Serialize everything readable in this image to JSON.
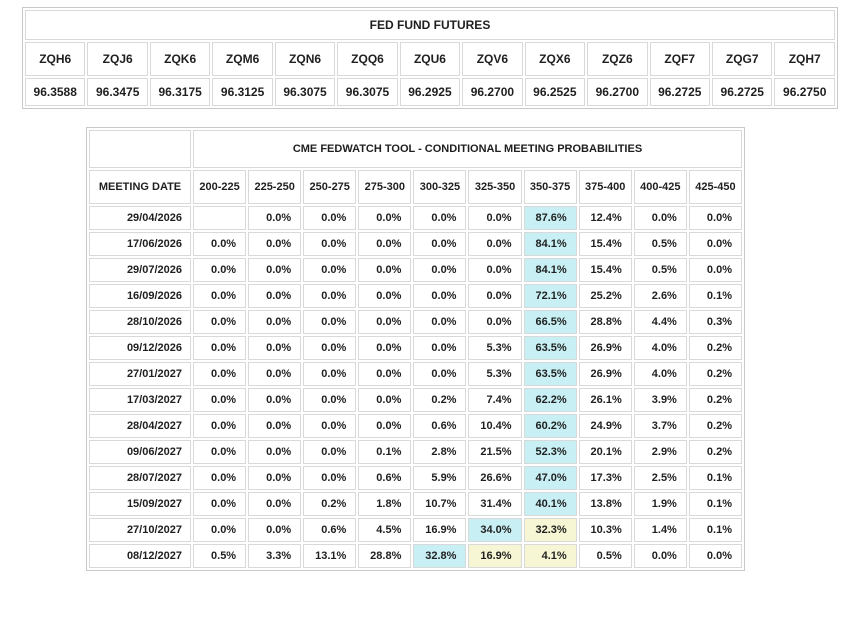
{
  "futures_table": {
    "title": "FED FUND FUTURES",
    "columns": [
      "ZQH6",
      "ZQJ6",
      "ZQK6",
      "ZQM6",
      "ZQN6",
      "ZQQ6",
      "ZQU6",
      "ZQV6",
      "ZQX6",
      "ZQZ6",
      "ZQF7",
      "ZQG7",
      "ZQH7"
    ],
    "values": [
      "96.3588",
      "96.3475",
      "96.3175",
      "96.3125",
      "96.3075",
      "96.3075",
      "96.2925",
      "96.2700",
      "96.2525",
      "96.2700",
      "96.2725",
      "96.2725",
      "96.2750"
    ]
  },
  "fedwatch_table": {
    "title": "CME FEDWATCH TOOL - CONDITIONAL MEETING PROBABILITIES",
    "date_header": "MEETING DATE",
    "rate_columns": [
      "200-225",
      "225-250",
      "250-275",
      "275-300",
      "300-325",
      "325-350",
      "350-375",
      "375-400",
      "400-425",
      "425-450"
    ],
    "highlight_colors": {
      "c": "#c8f0f4",
      "y": "#f6f6d5"
    },
    "rows": [
      {
        "date": "29/04/2026",
        "values": [
          "",
          "0.0%",
          "0.0%",
          "0.0%",
          "0.0%",
          "0.0%",
          "87.6%",
          "12.4%",
          "0.0%",
          "0.0%"
        ],
        "highlights": [
          "",
          "",
          "",
          "",
          "",
          "",
          "c",
          "",
          "",
          ""
        ]
      },
      {
        "date": "17/06/2026",
        "values": [
          "0.0%",
          "0.0%",
          "0.0%",
          "0.0%",
          "0.0%",
          "0.0%",
          "84.1%",
          "15.4%",
          "0.5%",
          "0.0%"
        ],
        "highlights": [
          "",
          "",
          "",
          "",
          "",
          "",
          "c",
          "",
          "",
          ""
        ]
      },
      {
        "date": "29/07/2026",
        "values": [
          "0.0%",
          "0.0%",
          "0.0%",
          "0.0%",
          "0.0%",
          "0.0%",
          "84.1%",
          "15.4%",
          "0.5%",
          "0.0%"
        ],
        "highlights": [
          "",
          "",
          "",
          "",
          "",
          "",
          "c",
          "",
          "",
          ""
        ]
      },
      {
        "date": "16/09/2026",
        "values": [
          "0.0%",
          "0.0%",
          "0.0%",
          "0.0%",
          "0.0%",
          "0.0%",
          "72.1%",
          "25.2%",
          "2.6%",
          "0.1%"
        ],
        "highlights": [
          "",
          "",
          "",
          "",
          "",
          "",
          "c",
          "",
          "",
          ""
        ]
      },
      {
        "date": "28/10/2026",
        "values": [
          "0.0%",
          "0.0%",
          "0.0%",
          "0.0%",
          "0.0%",
          "0.0%",
          "66.5%",
          "28.8%",
          "4.4%",
          "0.3%"
        ],
        "highlights": [
          "",
          "",
          "",
          "",
          "",
          "",
          "c",
          "",
          "",
          ""
        ]
      },
      {
        "date": "09/12/2026",
        "values": [
          "0.0%",
          "0.0%",
          "0.0%",
          "0.0%",
          "0.0%",
          "5.3%",
          "63.5%",
          "26.9%",
          "4.0%",
          "0.2%"
        ],
        "highlights": [
          "",
          "",
          "",
          "",
          "",
          "",
          "c",
          "",
          "",
          ""
        ]
      },
      {
        "date": "27/01/2027",
        "values": [
          "0.0%",
          "0.0%",
          "0.0%",
          "0.0%",
          "0.0%",
          "5.3%",
          "63.5%",
          "26.9%",
          "4.0%",
          "0.2%"
        ],
        "highlights": [
          "",
          "",
          "",
          "",
          "",
          "",
          "c",
          "",
          "",
          ""
        ]
      },
      {
        "date": "17/03/2027",
        "values": [
          "0.0%",
          "0.0%",
          "0.0%",
          "0.0%",
          "0.2%",
          "7.4%",
          "62.2%",
          "26.1%",
          "3.9%",
          "0.2%"
        ],
        "highlights": [
          "",
          "",
          "",
          "",
          "",
          "",
          "c",
          "",
          "",
          ""
        ]
      },
      {
        "date": "28/04/2027",
        "values": [
          "0.0%",
          "0.0%",
          "0.0%",
          "0.0%",
          "0.6%",
          "10.4%",
          "60.2%",
          "24.9%",
          "3.7%",
          "0.2%"
        ],
        "highlights": [
          "",
          "",
          "",
          "",
          "",
          "",
          "c",
          "",
          "",
          ""
        ]
      },
      {
        "date": "09/06/2027",
        "values": [
          "0.0%",
          "0.0%",
          "0.0%",
          "0.1%",
          "2.8%",
          "21.5%",
          "52.3%",
          "20.1%",
          "2.9%",
          "0.2%"
        ],
        "highlights": [
          "",
          "",
          "",
          "",
          "",
          "",
          "c",
          "",
          "",
          ""
        ]
      },
      {
        "date": "28/07/2027",
        "values": [
          "0.0%",
          "0.0%",
          "0.0%",
          "0.6%",
          "5.9%",
          "26.6%",
          "47.0%",
          "17.3%",
          "2.5%",
          "0.1%"
        ],
        "highlights": [
          "",
          "",
          "",
          "",
          "",
          "",
          "c",
          "",
          "",
          ""
        ]
      },
      {
        "date": "15/09/2027",
        "values": [
          "0.0%",
          "0.0%",
          "0.2%",
          "1.8%",
          "10.7%",
          "31.4%",
          "40.1%",
          "13.8%",
          "1.9%",
          "0.1%"
        ],
        "highlights": [
          "",
          "",
          "",
          "",
          "",
          "",
          "c",
          "",
          "",
          ""
        ]
      },
      {
        "date": "27/10/2027",
        "values": [
          "0.0%",
          "0.0%",
          "0.6%",
          "4.5%",
          "16.9%",
          "34.0%",
          "32.3%",
          "10.3%",
          "1.4%",
          "0.1%"
        ],
        "highlights": [
          "",
          "",
          "",
          "",
          "",
          "c",
          "y",
          "",
          "",
          ""
        ]
      },
      {
        "date": "08/12/2027",
        "values": [
          "0.5%",
          "3.3%",
          "13.1%",
          "28.8%",
          "32.8%",
          "16.9%",
          "4.1%",
          "0.5%",
          "0.0%",
          "0.0%"
        ],
        "highlights": [
          "",
          "",
          "",
          "",
          "c",
          "y",
          "y",
          "",
          "",
          ""
        ]
      }
    ]
  }
}
